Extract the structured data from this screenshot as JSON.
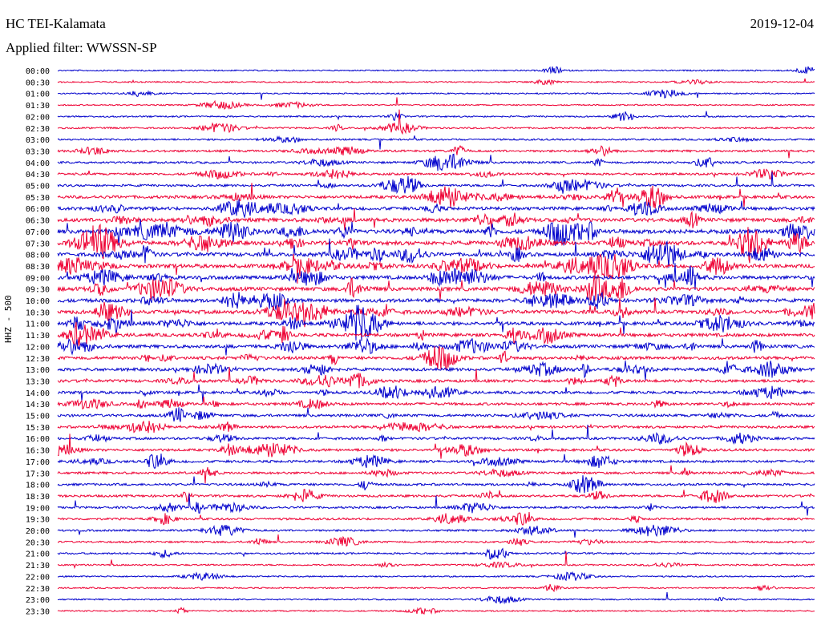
{
  "header": {
    "station": "HC TEI-Kalamata",
    "date": "2019-12-04",
    "filter": "Applied filter: WWSSN-SP"
  },
  "channel_label": "HHZ - 500",
  "colors": {
    "trace_a": "#0000cc",
    "trace_b": "#ee0033",
    "text": "#000000"
  },
  "chart_data": {
    "type": "line",
    "title": "HC TEI-Kalamata",
    "subtitle": "Applied filter: WWSSN-SP",
    "ylabel": "HHZ - 500",
    "xlabel": "",
    "rows": [
      "00:00",
      "00:30",
      "01:00",
      "01:30",
      "02:00",
      "02:30",
      "03:00",
      "03:30",
      "04:00",
      "04:30",
      "05:00",
      "05:30",
      "06:00",
      "06:30",
      "07:00",
      "07:30",
      "08:00",
      "08:30",
      "09:00",
      "09:30",
      "10:00",
      "10:30",
      "11:00",
      "11:30",
      "12:00",
      "12:30",
      "13:00",
      "13:30",
      "14:00",
      "14:30",
      "15:00",
      "15:30",
      "16:00",
      "16:30",
      "17:00",
      "17:30",
      "18:00",
      "18:30",
      "19:00",
      "19:30",
      "20:00",
      "20:30",
      "21:00",
      "21:30",
      "22:00",
      "22:30",
      "23:00",
      "23:30"
    ],
    "row_activity": [
      0.08,
      0.1,
      0.1,
      0.08,
      0.14,
      0.18,
      0.2,
      0.3,
      0.3,
      0.3,
      0.35,
      0.55,
      0.6,
      0.75,
      0.85,
      0.8,
      0.75,
      0.75,
      0.7,
      0.75,
      0.7,
      0.7,
      0.65,
      0.6,
      0.6,
      0.55,
      0.55,
      0.5,
      0.45,
      0.45,
      0.45,
      0.4,
      0.4,
      0.4,
      0.4,
      0.35,
      0.35,
      0.35,
      0.3,
      0.3,
      0.25,
      0.22,
      0.2,
      0.15,
      0.12,
      0.1,
      0.1,
      0.1
    ],
    "series_colors": [
      "#0000cc",
      "#ee0033"
    ],
    "grid": false
  }
}
